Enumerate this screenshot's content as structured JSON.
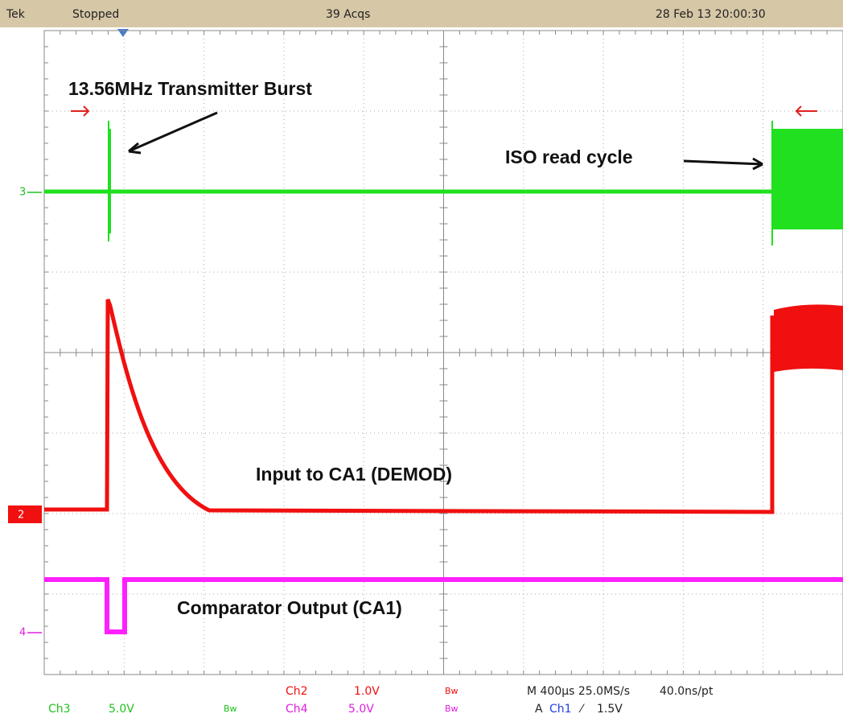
{
  "header": {
    "brand": "Tek",
    "status": "Stopped",
    "acquisitions": "39 Acqs",
    "datetime": "28 Feb 13 20:00:30"
  },
  "annotations": [
    "13.56MHz Transmitter Burst",
    "ISO read cycle",
    "Input to CA1 (DEMOD)",
    "Comparator Output (CA1)"
  ],
  "channel_markers": [
    "3",
    "2",
    "4"
  ],
  "readout": {
    "ch3": {
      "name": "Ch3",
      "scale": "5.0V",
      "bw": "Bw"
    },
    "ch2": {
      "name": "Ch2",
      "scale": "1.0V",
      "bw": "Bw"
    },
    "ch4": {
      "name": "Ch4",
      "scale": "5.0V",
      "bw": "Bw"
    },
    "timebase": "M 400µs 25.0MS/s",
    "resolution": "40.0ns/pt",
    "trigger": {
      "mode": "A",
      "source": "Ch1",
      "slope": "⁄",
      "level": "1.5V"
    }
  }
}
